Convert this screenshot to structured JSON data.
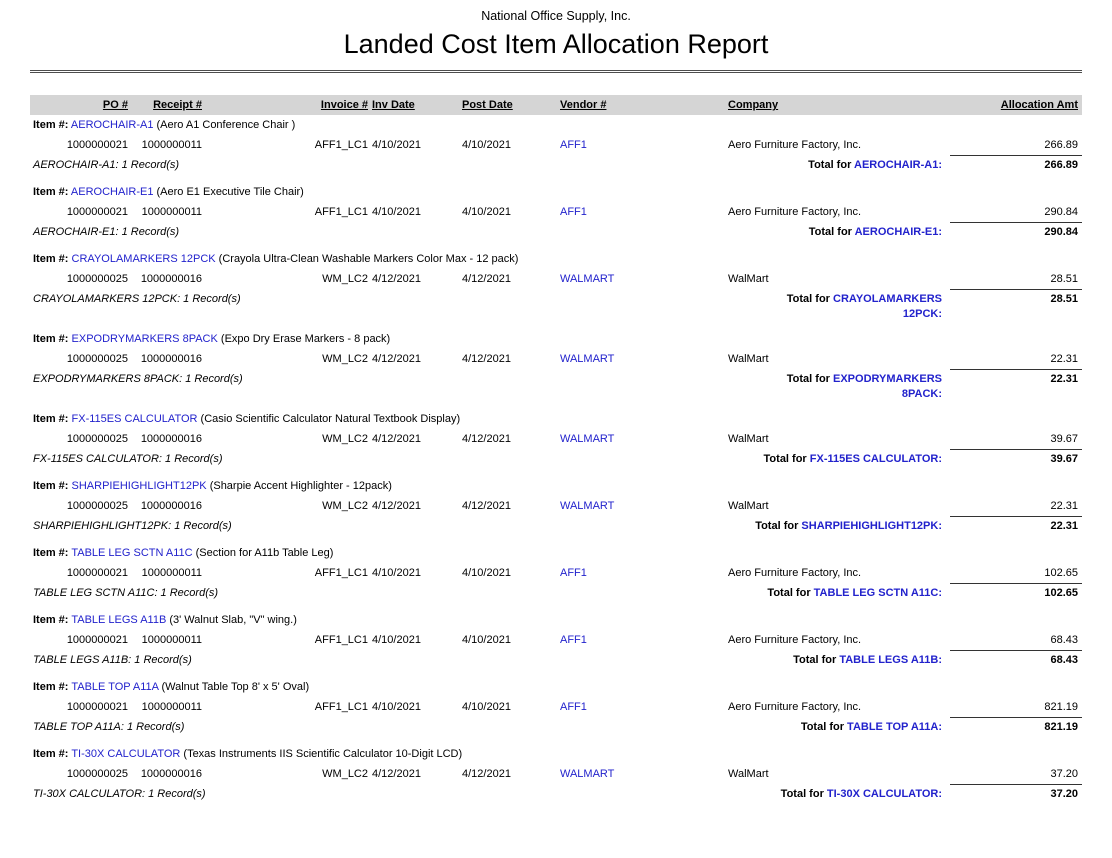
{
  "colors": {
    "link_blue": "#2222CC",
    "header_bg": "#D5D5D5"
  },
  "report": {
    "company_name": "National Office Supply, Inc.",
    "title": "Landed Cost Item Allocation Report"
  },
  "labels": {
    "item_prefix": "Item #:",
    "total_prefix": "Total for"
  },
  "table": {
    "columns": [
      "PO #",
      "Receipt #",
      "Invoice #",
      "Inv Date",
      "Post Date",
      "Vendor #",
      "Company",
      "Allocation Amt"
    ],
    "groups": [
      {
        "code": "AEROCHAIR-A1",
        "desc": "(Aero A1 Conference Chair )",
        "rows": [
          {
            "po": "1000000021",
            "receipt": "1000000011",
            "invoice": "AFF1_LC1",
            "inv_date": "4/10/2021",
            "post_date": "4/10/2021",
            "vendor": "AFF1",
            "company": "Aero Furniture Factory, Inc.",
            "amount": "266.89"
          }
        ],
        "records": "1 Record(s)",
        "total": "266.89"
      },
      {
        "code": "AEROCHAIR-E1",
        "desc": "(Aero E1 Executive Tile Chair)",
        "rows": [
          {
            "po": "1000000021",
            "receipt": "1000000011",
            "invoice": "AFF1_LC1",
            "inv_date": "4/10/2021",
            "post_date": "4/10/2021",
            "vendor": "AFF1",
            "company": "Aero Furniture Factory, Inc.",
            "amount": "290.84"
          }
        ],
        "records": "1 Record(s)",
        "total": "290.84"
      },
      {
        "code": "CRAYOLAMARKERS 12PCK",
        "desc": "(Crayola Ultra-Clean Washable Markers Color Max - 12 pack)",
        "rows": [
          {
            "po": "1000000025",
            "receipt": "1000000016",
            "invoice": "WM_LC2",
            "inv_date": "4/12/2021",
            "post_date": "4/12/2021",
            "vendor": "WALMART",
            "company": "WalMart",
            "amount": "28.51"
          }
        ],
        "records": "1 Record(s)",
        "total": "28.51"
      },
      {
        "code": "EXPODRYMARKERS 8PACK",
        "desc": "(Expo Dry Erase Markers - 8 pack)",
        "rows": [
          {
            "po": "1000000025",
            "receipt": "1000000016",
            "invoice": "WM_LC2",
            "inv_date": "4/12/2021",
            "post_date": "4/12/2021",
            "vendor": "WALMART",
            "company": "WalMart",
            "amount": "22.31"
          }
        ],
        "records": "1 Record(s)",
        "total": "22.31"
      },
      {
        "code": "FX-115ES CALCULATOR",
        "desc": "(Casio Scientific Calculator Natural Textbook Display)",
        "rows": [
          {
            "po": "1000000025",
            "receipt": "1000000016",
            "invoice": "WM_LC2",
            "inv_date": "4/12/2021",
            "post_date": "4/12/2021",
            "vendor": "WALMART",
            "company": "WalMart",
            "amount": "39.67"
          }
        ],
        "records": "1 Record(s)",
        "total": "39.67"
      },
      {
        "code": "SHARPIEHIGHLIGHT12PK",
        "desc": "(Sharpie Accent Highlighter - 12pack)",
        "rows": [
          {
            "po": "1000000025",
            "receipt": "1000000016",
            "invoice": "WM_LC2",
            "inv_date": "4/12/2021",
            "post_date": "4/12/2021",
            "vendor": "WALMART",
            "company": "WalMart",
            "amount": "22.31"
          }
        ],
        "records": "1 Record(s)",
        "total": "22.31"
      },
      {
        "code": "TABLE LEG SCTN A11C",
        "desc": "(Section for A11b Table Leg)",
        "rows": [
          {
            "po": "1000000021",
            "receipt": "1000000011",
            "invoice": "AFF1_LC1",
            "inv_date": "4/10/2021",
            "post_date": "4/10/2021",
            "vendor": "AFF1",
            "company": "Aero Furniture Factory, Inc.",
            "amount": "102.65"
          }
        ],
        "records": "1 Record(s)",
        "total": "102.65"
      },
      {
        "code": "TABLE LEGS A11B",
        "desc": "(3' Walnut Slab, \"V\" wing.)",
        "rows": [
          {
            "po": "1000000021",
            "receipt": "1000000011",
            "invoice": "AFF1_LC1",
            "inv_date": "4/10/2021",
            "post_date": "4/10/2021",
            "vendor": "AFF1",
            "company": "Aero Furniture Factory, Inc.",
            "amount": "68.43"
          }
        ],
        "records": "1 Record(s)",
        "total": "68.43"
      },
      {
        "code": "TABLE TOP A11A",
        "desc": "(Walnut Table Top 8' x 5' Oval)",
        "rows": [
          {
            "po": "1000000021",
            "receipt": "1000000011",
            "invoice": "AFF1_LC1",
            "inv_date": "4/10/2021",
            "post_date": "4/10/2021",
            "vendor": "AFF1",
            "company": "Aero Furniture Factory, Inc.",
            "amount": "821.19"
          }
        ],
        "records": "1 Record(s)",
        "total": "821.19"
      },
      {
        "code": "TI-30X CALCULATOR",
        "desc": "(Texas Instruments IIS Scientific Calculator 10-Digit LCD)",
        "rows": [
          {
            "po": "1000000025",
            "receipt": "1000000016",
            "invoice": "WM_LC2",
            "inv_date": "4/12/2021",
            "post_date": "4/12/2021",
            "vendor": "WALMART",
            "company": "WalMart",
            "amount": "37.20"
          }
        ],
        "records": "1 Record(s)",
        "total": "37.20"
      }
    ]
  }
}
